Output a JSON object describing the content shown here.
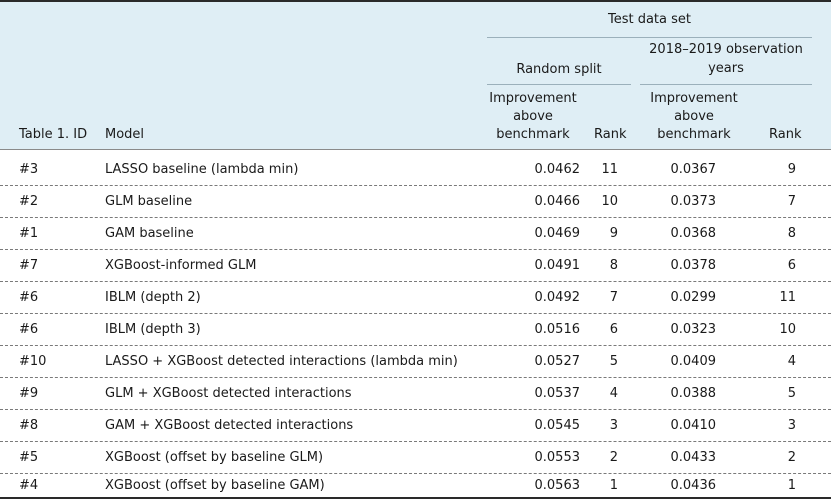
{
  "header": {
    "group_title": "Test data set",
    "random_split": "Random split",
    "years_line1": "2018–2019 observation",
    "years_line2": "years",
    "imp_line1": "Improvement",
    "imp_line2": "above",
    "imp_line3": "benchmark",
    "rank": "Rank",
    "col_id": "Table 1. ID",
    "col_model": "Model"
  },
  "rows": [
    {
      "id": "#3",
      "model": "LASSO baseline (lambda min)",
      "imp1": "0.0462",
      "rank1": "11",
      "imp2": "0.0367",
      "rank2": "9"
    },
    {
      "id": "#2",
      "model": "GLM baseline",
      "imp1": "0.0466",
      "rank1": "10",
      "imp2": "0.0373",
      "rank2": "7"
    },
    {
      "id": "#1",
      "model": "GAM baseline",
      "imp1": "0.0469",
      "rank1": "9",
      "imp2": "0.0368",
      "rank2": "8"
    },
    {
      "id": "#7",
      "model": "XGBoost-informed GLM",
      "imp1": "0.0491",
      "rank1": "8",
      "imp2": "0.0378",
      "rank2": "6"
    },
    {
      "id": "#6",
      "model": "IBLM (depth 2)",
      "imp1": "0.0492",
      "rank1": "7",
      "imp2": "0.0299",
      "rank2": "11"
    },
    {
      "id": "#6",
      "model": "IBLM (depth 3)",
      "imp1": "0.0516",
      "rank1": "6",
      "imp2": "0.0323",
      "rank2": "10"
    },
    {
      "id": "#10",
      "model": "LASSO + XGBoost detected interactions (lambda min)",
      "imp1": "0.0527",
      "rank1": "5",
      "imp2": "0.0409",
      "rank2": "4"
    },
    {
      "id": "#9",
      "model": "GLM + XGBoost detected interactions",
      "imp1": "0.0537",
      "rank1": "4",
      "imp2": "0.0388",
      "rank2": "5"
    },
    {
      "id": "#8",
      "model": "GAM + XGBoost detected interactions",
      "imp1": "0.0545",
      "rank1": "3",
      "imp2": "0.0410",
      "rank2": "3"
    },
    {
      "id": "#5",
      "model": "XGBoost (offset by baseline GLM)",
      "imp1": "0.0553",
      "rank1": "2",
      "imp2": "0.0433",
      "rank2": "2"
    },
    {
      "id": "#4",
      "model": "XGBoost (offset by baseline GAM)",
      "imp1": "0.0563",
      "rank1": "1",
      "imp2": "0.0436",
      "rank2": "1"
    }
  ]
}
